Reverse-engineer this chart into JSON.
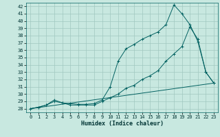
{
  "xlabel": "Humidex (Indice chaleur)",
  "bg_color": "#c8e8e0",
  "grid_color": "#a0c8c0",
  "line_color": "#006060",
  "xlim": [
    -0.5,
    23.5
  ],
  "ylim": [
    27.5,
    42.5
  ],
  "xticks": [
    0,
    1,
    2,
    3,
    4,
    5,
    6,
    7,
    8,
    9,
    10,
    11,
    12,
    13,
    14,
    15,
    16,
    17,
    18,
    19,
    20,
    21,
    22,
    23
  ],
  "yticks": [
    28,
    29,
    30,
    31,
    32,
    33,
    34,
    35,
    36,
    37,
    38,
    39,
    40,
    41,
    42
  ],
  "line1_x": [
    0,
    1,
    2,
    3,
    4,
    5,
    6,
    7,
    8,
    9,
    10,
    11,
    12,
    13,
    14,
    15,
    16,
    17,
    18,
    19,
    20,
    21,
    22,
    23
  ],
  "line1_y": [
    28.0,
    28.2,
    28.5,
    29.2,
    28.8,
    28.7,
    28.6,
    28.6,
    28.7,
    29.2,
    31.0,
    34.5,
    36.2,
    36.8,
    37.5,
    38.0,
    38.5,
    39.5,
    42.2,
    41.0,
    39.5,
    37.2,
    33.0,
    31.5
  ],
  "line2_x": [
    0,
    1,
    2,
    3,
    4,
    5,
    6,
    7,
    8,
    9,
    10,
    11,
    12,
    13,
    14,
    15,
    16,
    17,
    18,
    19,
    20,
    21,
    22,
    23
  ],
  "line2_y": [
    28.0,
    28.2,
    28.5,
    29.0,
    28.8,
    28.5,
    28.5,
    28.5,
    28.5,
    29.0,
    29.5,
    30.0,
    30.8,
    31.2,
    32.0,
    32.5,
    33.2,
    34.5,
    35.5,
    36.5,
    39.2,
    37.5,
    33.0,
    31.5
  ],
  "line3_x": [
    0,
    23
  ],
  "line3_y": [
    28.0,
    31.5
  ]
}
